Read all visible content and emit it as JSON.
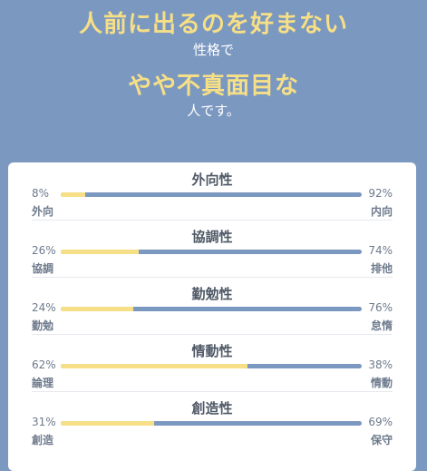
{
  "header": {
    "line1": "人前に出るのを好まない",
    "line2": "性格で",
    "line3": "やや不真面目な",
    "line4": "人です。"
  },
  "traits": [
    {
      "title": "外向性",
      "left_percent": "8%",
      "right_percent": "92%",
      "left_label": "外向",
      "right_label": "内向",
      "left_value": 8
    },
    {
      "title": "協調性",
      "left_percent": "26%",
      "right_percent": "74%",
      "left_label": "協調",
      "right_label": "排他",
      "left_value": 26
    },
    {
      "title": "勤勉性",
      "left_percent": "24%",
      "right_percent": "76%",
      "left_label": "勤勉",
      "right_label": "怠惰",
      "left_value": 24
    },
    {
      "title": "情動性",
      "left_percent": "62%",
      "right_percent": "38%",
      "left_label": "論理",
      "right_label": "情動",
      "left_value": 62
    },
    {
      "title": "創造性",
      "left_percent": "31%",
      "right_percent": "69%",
      "left_label": "創造",
      "right_label": "保守",
      "left_value": 31
    }
  ],
  "colors": {
    "background": "#7b98c0",
    "accent_yellow": "#f6df86",
    "bar_blue": "#7b98c0"
  }
}
